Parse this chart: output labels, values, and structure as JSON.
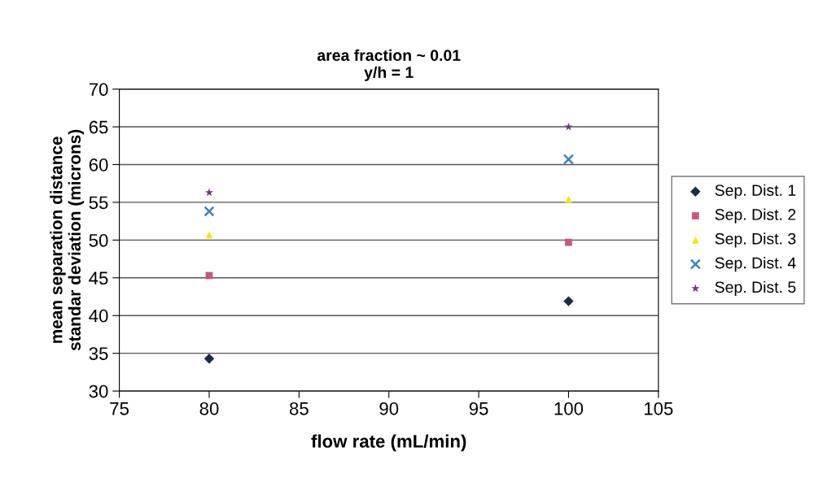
{
  "chart_data": {
    "type": "scatter",
    "title": "area fraction ~ 0.01\ny/h = 1",
    "xlabel": "flow rate (mL/min)",
    "ylabel": "mean separation distance\nstandar deviation (microns)",
    "x": [
      80,
      100
    ],
    "series": [
      {
        "name": "Sep. Dist. 1",
        "color": "#1f2a4a",
        "marker": "diamond",
        "values": [
          34.3,
          41.9
        ]
      },
      {
        "name": "Sep. Dist. 2",
        "color": "#c8587a",
        "marker": "square",
        "values": [
          45.3,
          49.7
        ]
      },
      {
        "name": "Sep. Dist. 3",
        "color": "#f5e900",
        "marker": "triangle",
        "values": [
          50.7,
          55.4
        ]
      },
      {
        "name": "Sep. Dist. 4",
        "color": "#3a85c0",
        "marker": "cross",
        "values": [
          53.8,
          60.7
        ]
      },
      {
        "name": "Sep. Dist. 5",
        "color": "#6b3a7a",
        "marker": "star",
        "values": [
          56.3,
          65.0
        ]
      }
    ],
    "xlim": [
      75,
      105
    ],
    "xticks": [
      75,
      80,
      85,
      90,
      95,
      100,
      105
    ],
    "ylim": [
      30,
      70
    ],
    "yticks": [
      30,
      35,
      40,
      45,
      50,
      55,
      60,
      65,
      70
    ],
    "grid": "y",
    "legend": "right"
  }
}
